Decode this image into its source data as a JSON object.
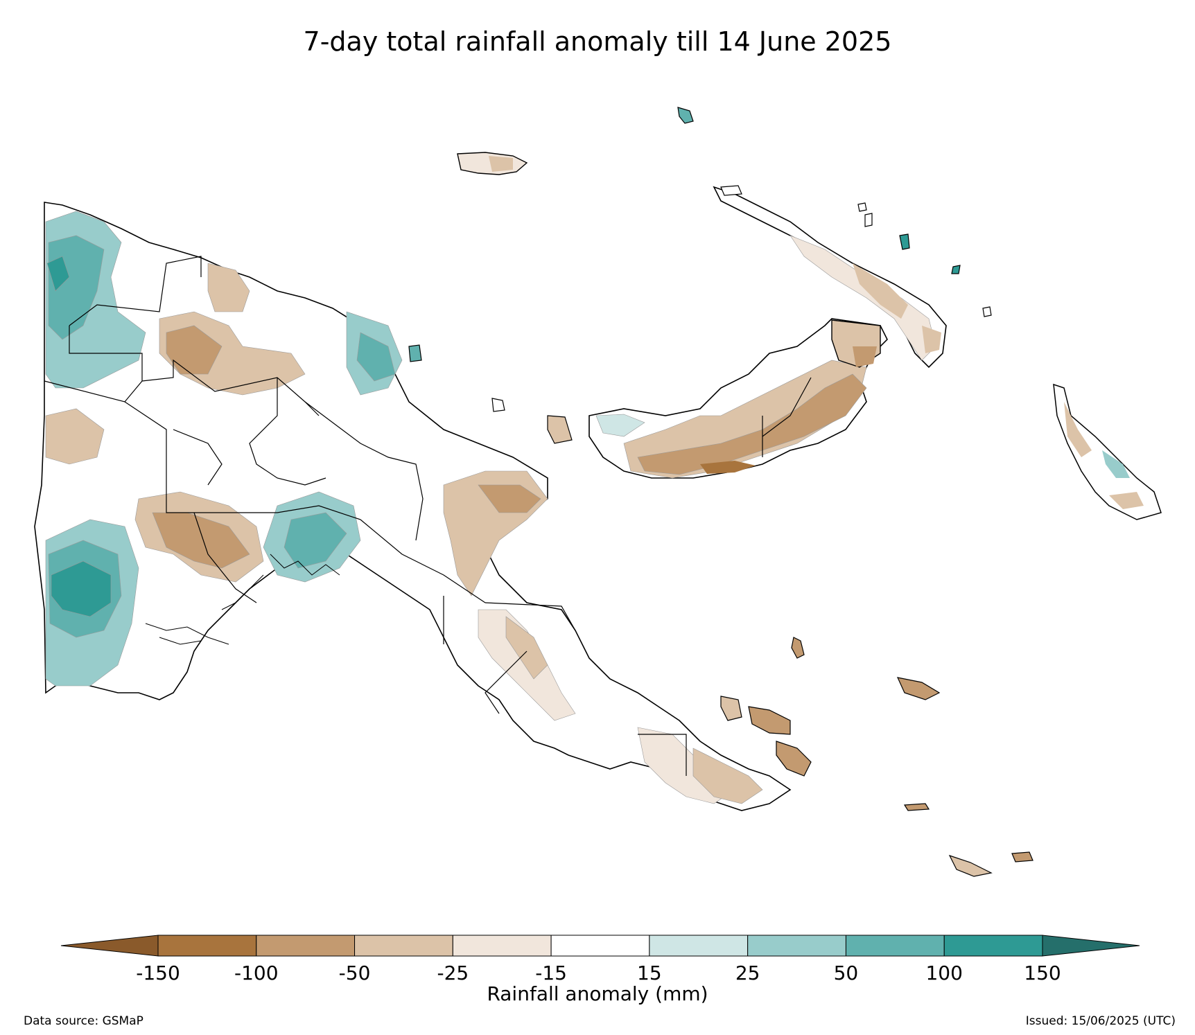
{
  "title": "7-day total rainfall anomaly till 14 June 2025",
  "colorbar": {
    "label": "Rainfall anomaly (mm)",
    "ticks": [
      "-150",
      "-100",
      "-50",
      "-25",
      "-15",
      "15",
      "25",
      "50",
      "100",
      "150"
    ],
    "colors": {
      "extend_low": "#8a5a2b",
      "bin_-150_-100": "#a8743d",
      "bin_-100_-50": "#c39a70",
      "bin_-50_-25": "#dcc3a8",
      "bin_-25_-15": "#f1e6dc",
      "bin_-15_15": "#ffffff",
      "bin_15_25": "#cfe6e5",
      "bin_25_50": "#98cccb",
      "bin_50_100": "#60b1ae",
      "bin_100_150": "#2e9a94",
      "extend_high": "#256f6b"
    }
  },
  "footer": {
    "source": "Data source: GSMaP",
    "issued": "Issued: 15/06/2025 (UTC)"
  }
}
